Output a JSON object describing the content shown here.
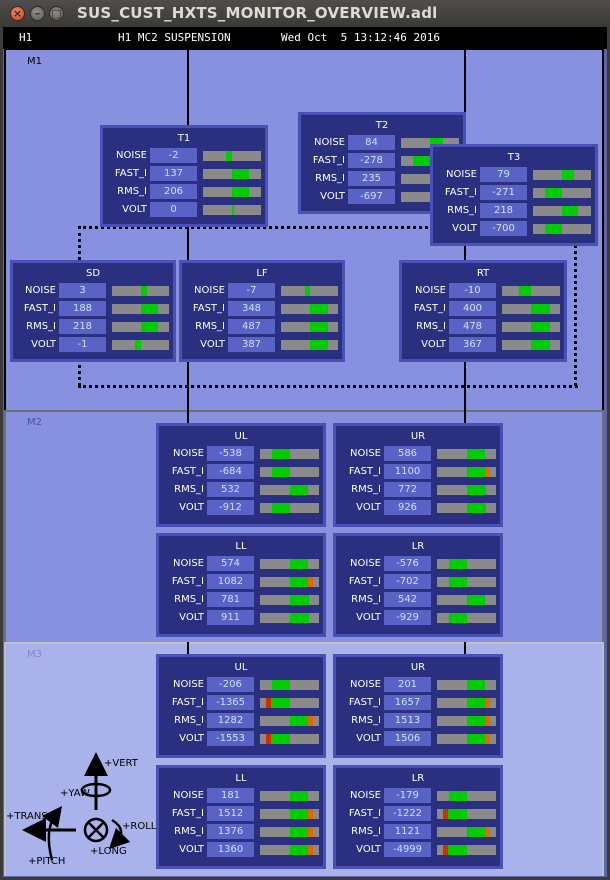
{
  "window": {
    "title": "SUS_CUST_HXTS_MONITOR_OVERVIEW.adl",
    "close_glyph": "×",
    "min_glyph": "–",
    "max_glyph": "□"
  },
  "header": {
    "ifo": "H1",
    "system": "H1 MC2 SUSPENSION",
    "timestamp": "Wed Oct  5 13:12:46 2016"
  },
  "stages": {
    "m1": "M1",
    "m2": "M2",
    "m3": "M3"
  },
  "row_labels": [
    "NOISE",
    "FAST_I",
    "RMS_I",
    "VOLT"
  ],
  "colors": {
    "bar_bg": "#8a8a8a",
    "green": "#00cc00",
    "orange": "#e06a00",
    "red": "#d82a00"
  },
  "osems": {
    "T1": {
      "name": "T1",
      "rows": [
        {
          "value": "-2",
          "segs": [
            [
              0.4,
              0.5,
              "green"
            ]
          ]
        },
        {
          "value": "137",
          "segs": [
            [
              0.5,
              0.8,
              "green"
            ]
          ]
        },
        {
          "value": "206",
          "segs": [
            [
              0.5,
              0.8,
              "green"
            ]
          ]
        },
        {
          "value": "0",
          "segs": [
            [
              0.5,
              0.52,
              "green"
            ]
          ]
        }
      ]
    },
    "T2": {
      "name": "T2",
      "rows": [
        {
          "value": "84",
          "segs": [
            [
              0.5,
              0.72,
              "green"
            ]
          ]
        },
        {
          "value": "-278",
          "segs": [
            [
              0.2,
              0.5,
              "green"
            ]
          ]
        },
        {
          "value": "235",
          "segs": [
            [
              0.5,
              0.78,
              "green"
            ]
          ]
        },
        {
          "value": "-697",
          "segs": [
            [
              0.5,
              1.0,
              "green"
            ]
          ]
        }
      ]
    },
    "T3": {
      "name": "T3",
      "rows": [
        {
          "value": "79",
          "segs": [
            [
              0.5,
              0.7,
              "green"
            ]
          ]
        },
        {
          "value": "-271",
          "segs": [
            [
              0.2,
              0.5,
              "green"
            ]
          ]
        },
        {
          "value": "218",
          "segs": [
            [
              0.5,
              0.78,
              "green"
            ]
          ]
        },
        {
          "value": "-700",
          "segs": [
            [
              0.2,
              0.5,
              "green"
            ]
          ]
        }
      ]
    },
    "SD": {
      "name": "SD",
      "rows": [
        {
          "value": "3",
          "segs": [
            [
              0.5,
              0.6,
              "green"
            ]
          ]
        },
        {
          "value": "188",
          "segs": [
            [
              0.5,
              0.8,
              "green"
            ]
          ]
        },
        {
          "value": "218",
          "segs": [
            [
              0.5,
              0.8,
              "green"
            ]
          ]
        },
        {
          "value": "-1",
          "segs": [
            [
              0.4,
              0.5,
              "green"
            ]
          ]
        }
      ]
    },
    "LF": {
      "name": "LF",
      "rows": [
        {
          "value": "-7",
          "segs": [
            [
              0.42,
              0.5,
              "green"
            ]
          ]
        },
        {
          "value": "348",
          "segs": [
            [
              0.5,
              0.82,
              "green"
            ]
          ]
        },
        {
          "value": "487",
          "segs": [
            [
              0.5,
              0.82,
              "green"
            ]
          ]
        },
        {
          "value": "387",
          "segs": [
            [
              0.5,
              0.82,
              "green"
            ]
          ]
        }
      ]
    },
    "RT": {
      "name": "RT",
      "rows": [
        {
          "value": "-10",
          "segs": [
            [
              0.3,
              0.5,
              "green"
            ]
          ]
        },
        {
          "value": "400",
          "segs": [
            [
              0.5,
              0.82,
              "green"
            ]
          ]
        },
        {
          "value": "478",
          "segs": [
            [
              0.5,
              0.82,
              "green"
            ]
          ]
        },
        {
          "value": "367",
          "segs": [
            [
              0.5,
              0.82,
              "green"
            ]
          ]
        }
      ]
    },
    "M2_UL": {
      "name": "UL",
      "rows": [
        {
          "value": "-538",
          "segs": [
            [
              0.2,
              0.5,
              "green"
            ]
          ]
        },
        {
          "value": "-684",
          "segs": [
            [
              0.2,
              0.5,
              "green"
            ]
          ]
        },
        {
          "value": "532",
          "segs": [
            [
              0.5,
              0.8,
              "green"
            ]
          ]
        },
        {
          "value": "-912",
          "segs": [
            [
              0.2,
              0.5,
              "green"
            ]
          ]
        }
      ]
    },
    "M2_UR": {
      "name": "UR",
      "rows": [
        {
          "value": "586",
          "segs": [
            [
              0.5,
              0.8,
              "green"
            ]
          ]
        },
        {
          "value": "1100",
          "segs": [
            [
              0.5,
              0.82,
              "green"
            ],
            [
              0.82,
              0.9,
              "orange"
            ]
          ]
        },
        {
          "value": "772",
          "segs": [
            [
              0.5,
              0.82,
              "green"
            ]
          ]
        },
        {
          "value": "926",
          "segs": [
            [
              0.5,
              0.82,
              "green"
            ]
          ]
        }
      ]
    },
    "M2_LL": {
      "name": "LL",
      "rows": [
        {
          "value": "574",
          "segs": [
            [
              0.5,
              0.8,
              "green"
            ]
          ]
        },
        {
          "value": "1082",
          "segs": [
            [
              0.5,
              0.82,
              "green"
            ],
            [
              0.82,
              0.9,
              "orange"
            ]
          ]
        },
        {
          "value": "781",
          "segs": [
            [
              0.5,
              0.82,
              "green"
            ]
          ]
        },
        {
          "value": "911",
          "segs": [
            [
              0.5,
              0.82,
              "green"
            ]
          ]
        }
      ]
    },
    "M2_LR": {
      "name": "LR",
      "rows": [
        {
          "value": "-576",
          "segs": [
            [
              0.2,
              0.5,
              "green"
            ]
          ]
        },
        {
          "value": "-702",
          "segs": [
            [
              0.2,
              0.5,
              "green"
            ]
          ]
        },
        {
          "value": "542",
          "segs": [
            [
              0.5,
              0.8,
              "green"
            ]
          ]
        },
        {
          "value": "-929",
          "segs": [
            [
              0.2,
              0.5,
              "green"
            ]
          ]
        }
      ]
    },
    "M3_UL": {
      "name": "UL",
      "rows": [
        {
          "value": "-206",
          "segs": [
            [
              0.2,
              0.5,
              "green"
            ]
          ]
        },
        {
          "value": "-1365",
          "segs": [
            [
              0.1,
              0.18,
              "red"
            ],
            [
              0.18,
              0.5,
              "green"
            ]
          ]
        },
        {
          "value": "1282",
          "segs": [
            [
              0.5,
              0.82,
              "green"
            ],
            [
              0.82,
              0.9,
              "orange"
            ]
          ]
        },
        {
          "value": "-1553",
          "segs": [
            [
              0.1,
              0.18,
              "red"
            ],
            [
              0.18,
              0.5,
              "green"
            ]
          ]
        }
      ]
    },
    "M3_UR": {
      "name": "UR",
      "rows": [
        {
          "value": "201",
          "segs": [
            [
              0.5,
              0.8,
              "green"
            ]
          ]
        },
        {
          "value": "1657",
          "segs": [
            [
              0.5,
              0.82,
              "green"
            ],
            [
              0.82,
              0.9,
              "orange"
            ]
          ]
        },
        {
          "value": "1513",
          "segs": [
            [
              0.5,
              0.82,
              "green"
            ],
            [
              0.82,
              0.9,
              "orange"
            ]
          ]
        },
        {
          "value": "1506",
          "segs": [
            [
              0.5,
              0.82,
              "green"
            ],
            [
              0.82,
              0.9,
              "orange"
            ]
          ]
        }
      ]
    },
    "M3_LL": {
      "name": "LL",
      "rows": [
        {
          "value": "181",
          "segs": [
            [
              0.5,
              0.8,
              "green"
            ]
          ]
        },
        {
          "value": "1512",
          "segs": [
            [
              0.5,
              0.82,
              "green"
            ],
            [
              0.82,
              0.9,
              "orange"
            ]
          ]
        },
        {
          "value": "1376",
          "segs": [
            [
              0.5,
              0.82,
              "green"
            ],
            [
              0.82,
              0.9,
              "orange"
            ]
          ]
        },
        {
          "value": "1360",
          "segs": [
            [
              0.5,
              0.82,
              "green"
            ],
            [
              0.82,
              0.9,
              "orange"
            ]
          ]
        }
      ]
    },
    "M3_LR": {
      "name": "LR",
      "rows": [
        {
          "value": "-179",
          "segs": [
            [
              0.2,
              0.5,
              "green"
            ]
          ]
        },
        {
          "value": "-1222",
          "segs": [
            [
              0.1,
              0.18,
              "red"
            ],
            [
              0.18,
              0.5,
              "green"
            ]
          ]
        },
        {
          "value": "1121",
          "segs": [
            [
              0.5,
              0.82,
              "green"
            ],
            [
              0.82,
              0.9,
              "orange"
            ]
          ]
        },
        {
          "value": "-4999",
          "segs": [
            [
              0.1,
              0.18,
              "red"
            ],
            [
              0.18,
              0.5,
              "green"
            ]
          ]
        }
      ]
    }
  },
  "dof_legend": {
    "vert": "+VERT",
    "yaw": "+YAW",
    "trans": "+TRANS",
    "roll": "+ROLL",
    "long": "+LONG",
    "pitch": "+PITCH"
  }
}
